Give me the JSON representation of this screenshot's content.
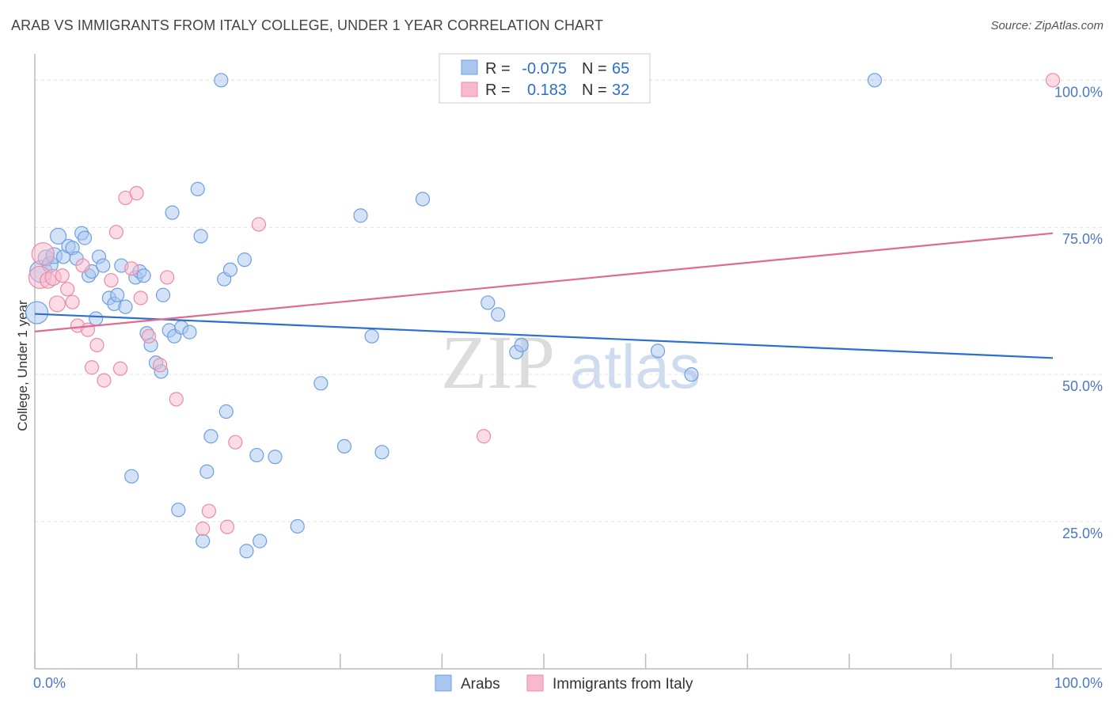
{
  "chart_data": {
    "type": "scatter",
    "title": "ARAB VS IMMIGRANTS FROM ITALY COLLEGE, UNDER 1 YEAR CORRELATION CHART",
    "source": "Source: ZipAtlas.com",
    "xlabel": "",
    "ylabel": "College, Under 1 year",
    "xlim": [
      0,
      100
    ],
    "ylim": [
      0,
      103
    ],
    "x_tick_labels": [
      "0.0%",
      "100.0%"
    ],
    "y_ticks": [
      25,
      50,
      75,
      100
    ],
    "y_tick_labels": [
      "25.0%",
      "50.0%",
      "75.0%",
      "100.0%"
    ],
    "watermark": {
      "part1": "ZIP",
      "part2": "atlas"
    },
    "legend_box": [
      {
        "r_label": "R =",
        "r_value": "-0.075",
        "n_label": "N =",
        "n_value": "65"
      },
      {
        "r_label": "R =",
        "r_value": "0.183",
        "n_label": "N =",
        "n_value": "32"
      }
    ],
    "series": [
      {
        "name": "Arabs",
        "color": "#a8c6f0",
        "edge": "#6f9fdf",
        "line_color": "#2b6fcf",
        "trend": {
          "y_at_0": 60.3,
          "y_at_100": 52.8
        },
        "points": [
          [
            0.2,
            60.5
          ],
          [
            0.6,
            67.5
          ],
          [
            1.1,
            69.8
          ],
          [
            1.5,
            68.7
          ],
          [
            1.9,
            70.2
          ],
          [
            2.3,
            73.5
          ],
          [
            2.8,
            70.0
          ],
          [
            3.3,
            71.8
          ],
          [
            3.7,
            71.5
          ],
          [
            4.1,
            69.7
          ],
          [
            4.6,
            74.0
          ],
          [
            4.9,
            73.2
          ],
          [
            5.3,
            66.8
          ],
          [
            5.6,
            67.5
          ],
          [
            6.0,
            59.5
          ],
          [
            6.3,
            70.0
          ],
          [
            6.7,
            68.5
          ],
          [
            7.3,
            63.0
          ],
          [
            7.8,
            62.0
          ],
          [
            8.1,
            63.5
          ],
          [
            8.5,
            68.5
          ],
          [
            8.9,
            61.5
          ],
          [
            9.5,
            32.7
          ],
          [
            9.9,
            66.5
          ],
          [
            10.3,
            67.5
          ],
          [
            10.7,
            66.8
          ],
          [
            11.0,
            57.0
          ],
          [
            11.4,
            55.0
          ],
          [
            11.9,
            52.0
          ],
          [
            12.4,
            50.5
          ],
          [
            12.6,
            63.5
          ],
          [
            13.2,
            57.5
          ],
          [
            13.5,
            77.5
          ],
          [
            13.7,
            56.5
          ],
          [
            14.1,
            27.0
          ],
          [
            14.4,
            58.0
          ],
          [
            15.2,
            57.2
          ],
          [
            16.0,
            81.5
          ],
          [
            16.3,
            73.5
          ],
          [
            16.5,
            21.7
          ],
          [
            16.9,
            33.5
          ],
          [
            17.3,
            39.5
          ],
          [
            18.3,
            100.0
          ],
          [
            18.6,
            66.2
          ],
          [
            18.8,
            43.7
          ],
          [
            19.2,
            67.8
          ],
          [
            20.6,
            69.5
          ],
          [
            20.8,
            20.0
          ],
          [
            21.8,
            36.3
          ],
          [
            22.1,
            21.7
          ],
          [
            23.6,
            36.0
          ],
          [
            25.8,
            24.2
          ],
          [
            28.1,
            48.5
          ],
          [
            30.4,
            37.8
          ],
          [
            32.0,
            77.0
          ],
          [
            33.1,
            56.5
          ],
          [
            34.1,
            36.8
          ],
          [
            38.1,
            79.8
          ],
          [
            44.5,
            62.2
          ],
          [
            45.5,
            60.2
          ],
          [
            47.3,
            53.8
          ],
          [
            47.8,
            55.0
          ],
          [
            61.2,
            54.0
          ],
          [
            64.5,
            50.0
          ],
          [
            82.5,
            100.0
          ]
        ]
      },
      {
        "name": "Immigrants from Italy",
        "color": "#f7b9cc",
        "edge": "#ec8aa8",
        "line_color": "#e06a94",
        "trend": {
          "y_at_0": 57.3,
          "y_at_100": 74.0
        },
        "points": [
          [
            0.5,
            66.5
          ],
          [
            0.8,
            70.5
          ],
          [
            1.3,
            66.0
          ],
          [
            1.8,
            66.5
          ],
          [
            2.2,
            62.0
          ],
          [
            2.7,
            66.8
          ],
          [
            3.2,
            64.5
          ],
          [
            3.7,
            62.3
          ],
          [
            4.2,
            58.3
          ],
          [
            4.7,
            68.5
          ],
          [
            5.2,
            57.6
          ],
          [
            5.6,
            51.2
          ],
          [
            6.1,
            55.0
          ],
          [
            6.8,
            49.0
          ],
          [
            7.5,
            66.0
          ],
          [
            8.0,
            74.2
          ],
          [
            8.4,
            51.0
          ],
          [
            8.9,
            80.0
          ],
          [
            9.5,
            68.0
          ],
          [
            10.0,
            80.8
          ],
          [
            10.4,
            63.0
          ],
          [
            11.2,
            56.5
          ],
          [
            12.3,
            51.6
          ],
          [
            13.0,
            66.5
          ],
          [
            13.9,
            45.8
          ],
          [
            16.5,
            23.8
          ],
          [
            17.1,
            26.8
          ],
          [
            18.9,
            24.1
          ],
          [
            19.7,
            38.5
          ],
          [
            22.0,
            75.5
          ],
          [
            44.1,
            39.5
          ],
          [
            100.0,
            100.0
          ]
        ]
      }
    ]
  }
}
